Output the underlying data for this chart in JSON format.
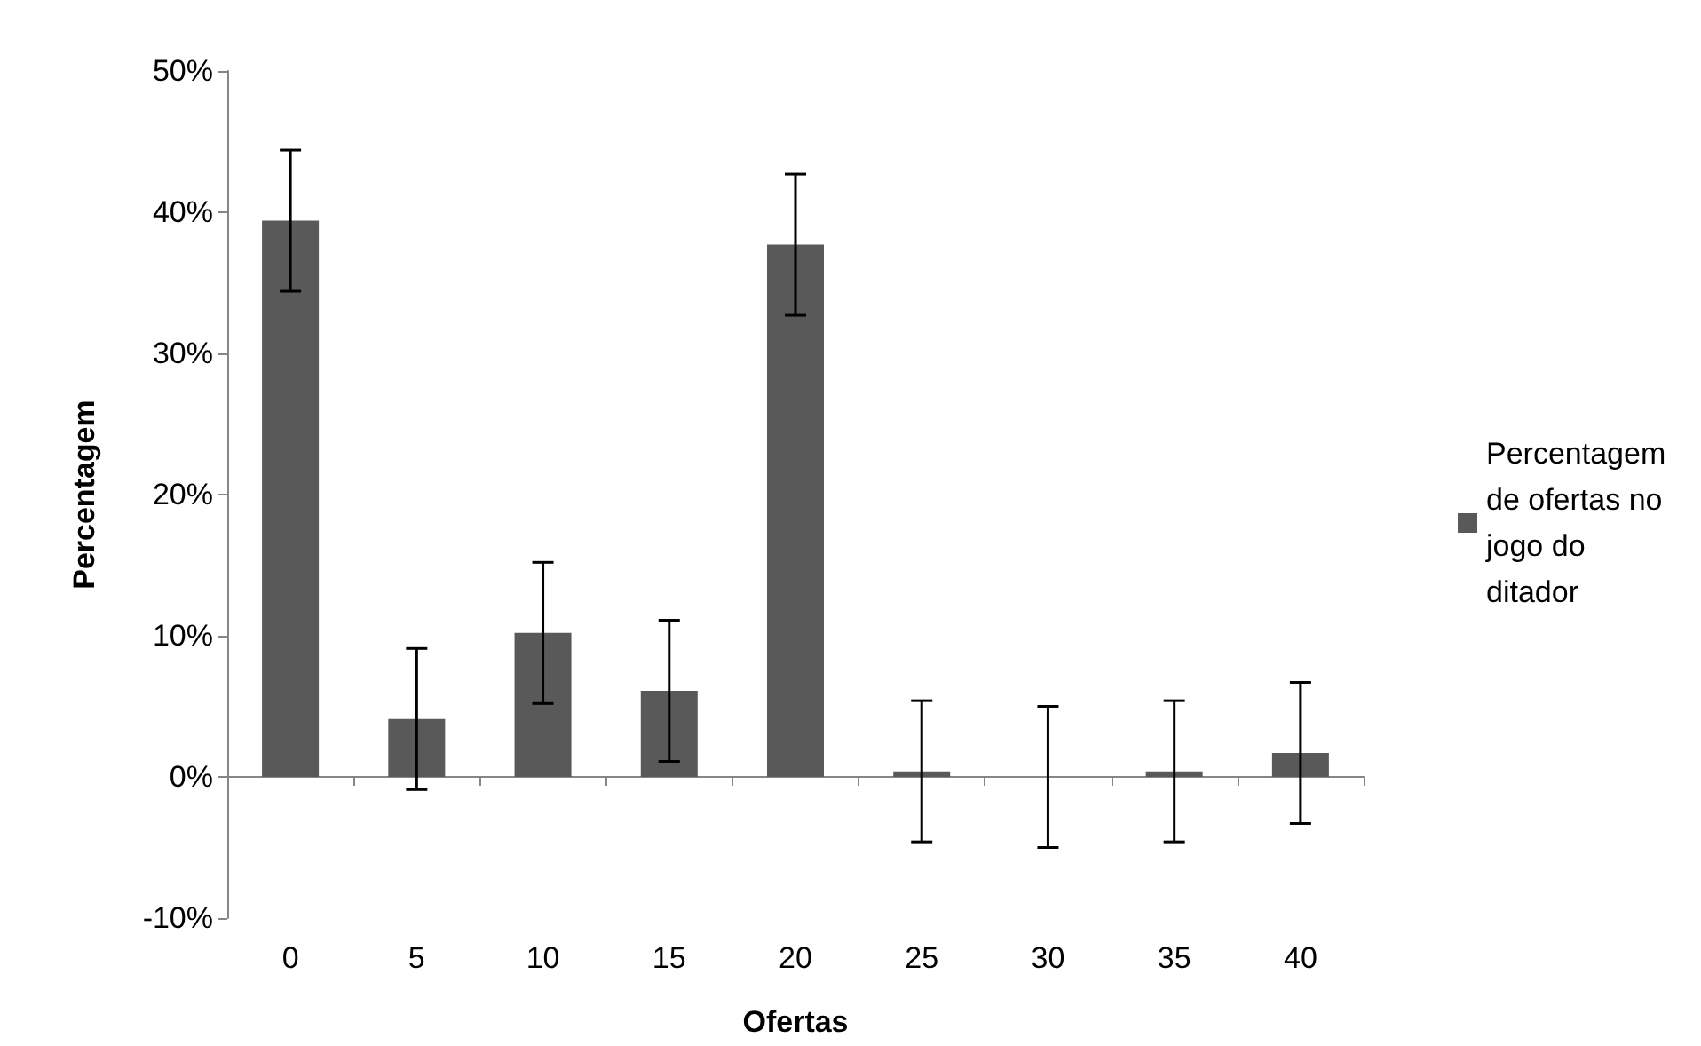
{
  "chart_data": {
    "type": "bar",
    "xlabel": "Ofertas",
    "ylabel": "Percentagem",
    "categories": [
      "0",
      "5",
      "10",
      "15",
      "20",
      "25",
      "30",
      "35",
      "40"
    ],
    "series": [
      {
        "name": "Percentagem de ofertas no jogo do ditador",
        "color": "#595959",
        "values": [
          39.4,
          4.1,
          10.2,
          6.1,
          37.7,
          0.4,
          0,
          0.4,
          1.7
        ],
        "errors": [
          5,
          5,
          5,
          5,
          5,
          5,
          5,
          5,
          5
        ]
      }
    ],
    "ylim": [
      -10,
      50
    ],
    "yticks": [
      {
        "value": -10,
        "label": "-10%"
      },
      {
        "value": 0,
        "label": "0%"
      },
      {
        "value": 10,
        "label": "10%"
      },
      {
        "value": 20,
        "label": "20%"
      },
      {
        "value": 30,
        "label": "30%"
      },
      {
        "value": 40,
        "label": "40%"
      },
      {
        "value": 50,
        "label": "50%"
      }
    ],
    "legend": "right"
  }
}
